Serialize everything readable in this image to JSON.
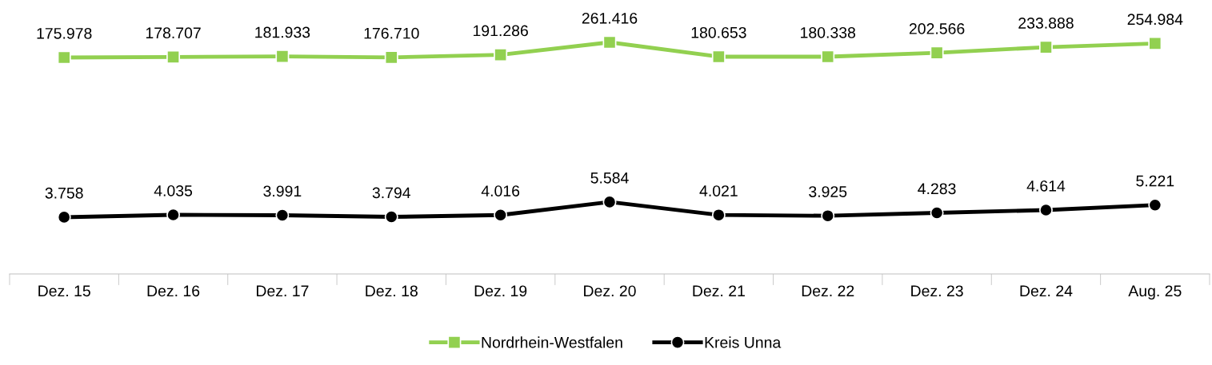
{
  "chart_data": [
    {
      "type": "line",
      "series": [
        {
          "name": "Nordrhein-Westfalen",
          "color": "#92d050",
          "marker": "square",
          "values": [
            175978,
            178707,
            181933,
            176710,
            191286,
            261416,
            180653,
            180338,
            202566,
            233888,
            254984
          ],
          "value_labels": [
            "175.978",
            "178.707",
            "181.933",
            "176.710",
            "191.286",
            "261.416",
            "180.653",
            "180.338",
            "202.566",
            "233.888",
            "254.984"
          ]
        }
      ],
      "tick_labels": false,
      "legend": "bottom",
      "line_style": "solid"
    },
    {
      "type": "line",
      "categories": [
        "Dez. 15",
        "Dez. 16",
        "Dez. 17",
        "Dez. 18",
        "Dez. 19",
        "Dez. 20",
        "Dez. 21",
        "Dez. 22",
        "Dez. 23",
        "Dez. 24",
        "Aug. 25"
      ],
      "series": [
        {
          "name": "Kreis Unna",
          "color": "#000000",
          "marker": "circle",
          "values": [
            3758,
            4035,
            3991,
            3794,
            4016,
            5584,
            4021,
            3925,
            4283,
            4614,
            5221
          ],
          "value_labels": [
            "3.758",
            "4.035",
            "3.991",
            "3.794",
            "4.016",
            "5.584",
            "4.021",
            "3.925",
            "4.283",
            "4.614",
            "5.221"
          ]
        }
      ],
      "tick_labels": "x",
      "legend": "bottom",
      "line_style": "solid"
    }
  ]
}
